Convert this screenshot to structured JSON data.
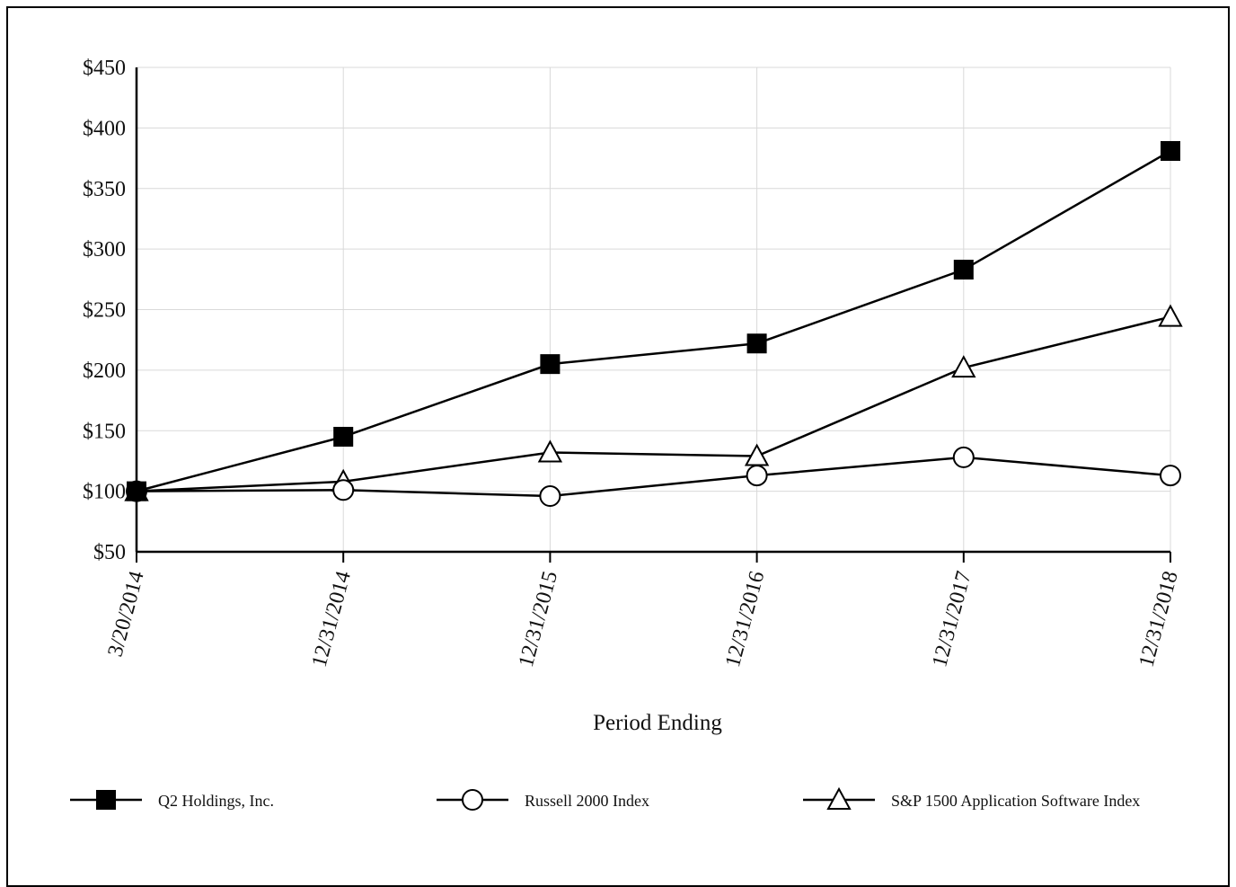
{
  "chart_data": {
    "type": "line",
    "xlabel": "Period Ending",
    "ylabel": "",
    "categories": [
      "3/20/2014",
      "12/31/2014",
      "12/31/2015",
      "12/31/2016",
      "12/31/2017",
      "12/31/2018"
    ],
    "ylim": [
      50,
      450
    ],
    "yticks": [
      50,
      100,
      150,
      200,
      250,
      300,
      350,
      400,
      450
    ],
    "ytick_labels": [
      "$50",
      "$100",
      "$150",
      "$200",
      "$250",
      "$300",
      "$350",
      "$400",
      "$450"
    ],
    "grid": true,
    "legend_position": "bottom",
    "series": [
      {
        "name": "Q2 Holdings, Inc.",
        "marker": "filled-square",
        "values": [
          100,
          145,
          205,
          222,
          283,
          381
        ]
      },
      {
        "name": "Russell 2000 Index",
        "marker": "open-circle",
        "values": [
          100,
          101,
          96,
          113,
          128,
          113
        ]
      },
      {
        "name": "S&P 1500 Application Software Index",
        "marker": "open-triangle",
        "values": [
          100,
          108,
          132,
          129,
          202,
          244
        ]
      }
    ],
    "colors": {
      "line": "#000000",
      "grid": "#d9d9d9"
    }
  }
}
